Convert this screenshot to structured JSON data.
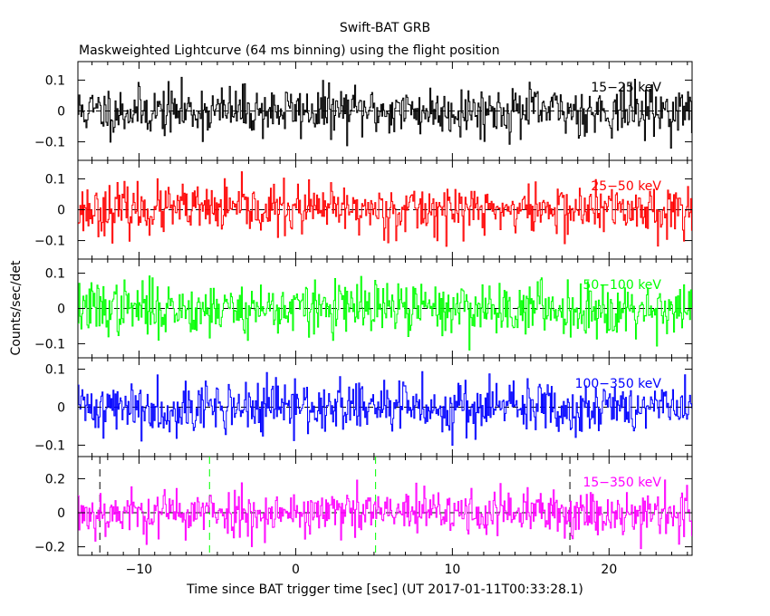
{
  "chart_data": {
    "type": "line",
    "title": "Swift-BAT GRB",
    "subtitle": "Maskweighted Lightcurve (64 ms binning) using the flight position",
    "xlabel": "Time since BAT trigger time [sec] (UT 2017-01-11T00:33:28.1)",
    "ylabel": "Counts/sec/det",
    "xlim": [
      -13.9,
      25.3
    ],
    "x_ticks": [
      {
        "value": -10,
        "label": "−10"
      },
      {
        "value": 0,
        "label": "0"
      },
      {
        "value": 10,
        "label": "10"
      },
      {
        "value": 20,
        "label": "20"
      }
    ],
    "bin_width_sec": 0.064,
    "panels": [
      {
        "name": "15-25 keV",
        "label": "15−25 keV",
        "color": "#000000",
        "ylim": [
          -0.16,
          0.16
        ],
        "y_ticks": [
          {
            "value": 0.1,
            "label": "0.1"
          },
          {
            "value": 0,
            "label": "0"
          },
          {
            "value": -0.1,
            "label": "−0.1"
          }
        ],
        "noise_sigma": 0.04,
        "seed": 11
      },
      {
        "name": "25-50 keV",
        "label": "25−50 keV",
        "color": "#ff0000",
        "ylim": [
          -0.16,
          0.16
        ],
        "y_ticks": [
          {
            "value": 0.1,
            "label": "0.1"
          },
          {
            "value": 0,
            "label": "0"
          },
          {
            "value": -0.1,
            "label": "−0.1"
          }
        ],
        "noise_sigma": 0.04,
        "seed": 23
      },
      {
        "name": "50-100 keV",
        "label": "50−100 keV",
        "color": "#00ff00",
        "ylim": [
          -0.14,
          0.14
        ],
        "y_ticks": [
          {
            "value": 0.1,
            "label": "0.1"
          },
          {
            "value": 0,
            "label": "0"
          },
          {
            "value": -0.1,
            "label": "−0.1"
          }
        ],
        "noise_sigma": 0.038,
        "seed": 37
      },
      {
        "name": "100-350 keV",
        "label": "100−350 keV",
        "color": "#0000ff",
        "ylim": [
          -0.13,
          0.13
        ],
        "y_ticks": [
          {
            "value": 0.1,
            "label": "0.1"
          },
          {
            "value": 0,
            "label": "0"
          },
          {
            "value": -0.1,
            "label": "−0.1"
          }
        ],
        "noise_sigma": 0.035,
        "seed": 41
      },
      {
        "name": "15-350 keV",
        "label": "15−350 keV",
        "color": "#ff00ff",
        "ylim": [
          -0.25,
          0.33
        ],
        "y_ticks": [
          {
            "value": 0.2,
            "label": "0.2"
          },
          {
            "value": 0,
            "label": "0"
          },
          {
            "value": -0.2,
            "label": "−0.2"
          }
        ],
        "noise_sigma": 0.07,
        "seed": 53,
        "markers": [
          {
            "x": -12.5,
            "color": "#000000"
          },
          {
            "x": -5.5,
            "color": "#00ff00"
          },
          {
            "x": 5.1,
            "color": "#00ff00"
          },
          {
            "x": 17.5,
            "color": "#000000"
          }
        ]
      }
    ],
    "grid": false,
    "legend": "none"
  }
}
